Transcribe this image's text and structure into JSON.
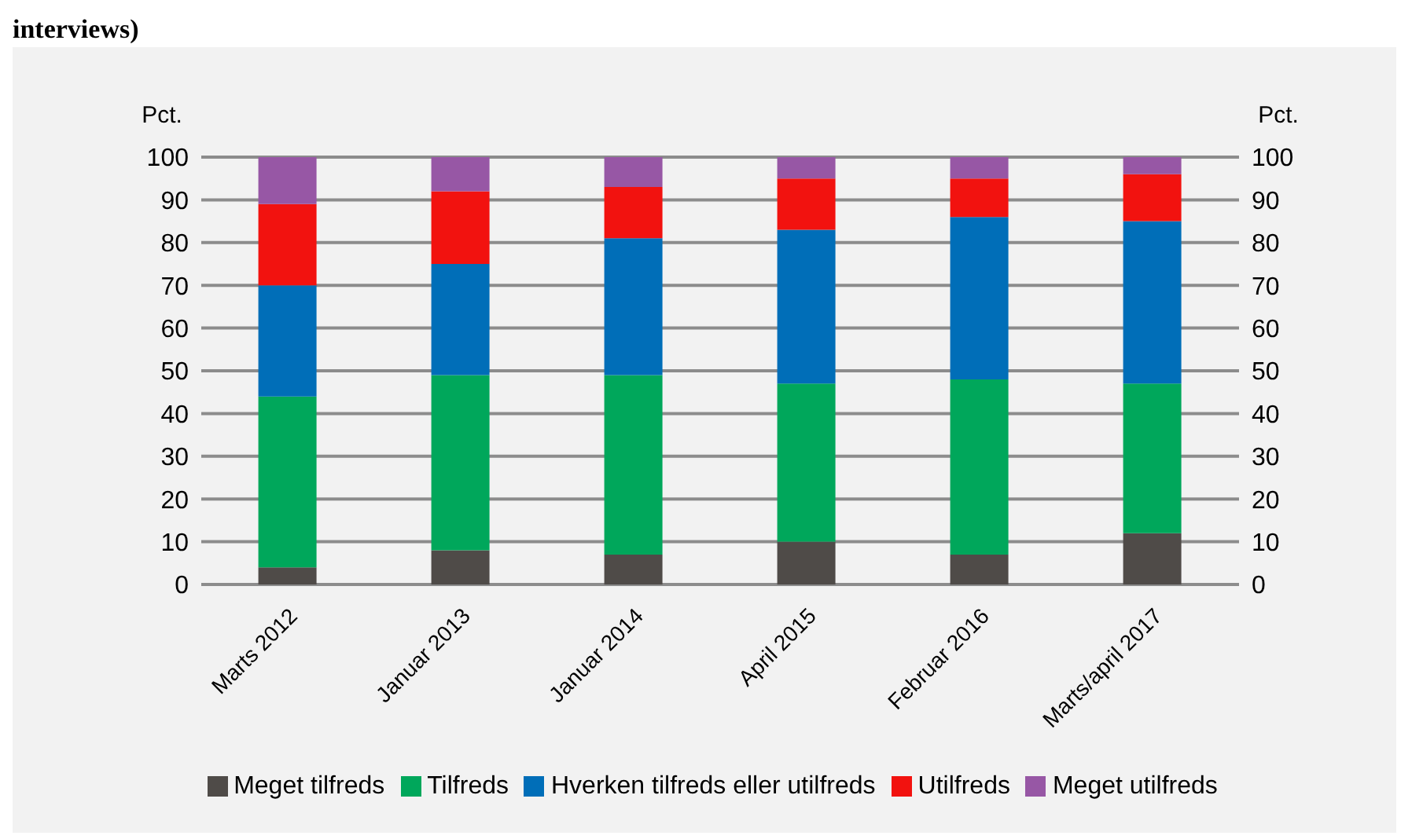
{
  "chart_data": {
    "type": "bar",
    "title": "interviews)",
    "ylabel": "Pct.",
    "y2label": "Pct.",
    "categories": [
      "Marts 2012",
      "Januar 2013",
      "Januar 2014",
      "April 2015",
      "Februar 2016",
      "Marts/april 2017"
    ],
    "series": [
      {
        "name": "Meget tilfreds",
        "color": "#4f4b48",
        "values": [
          4,
          8,
          7,
          10,
          7,
          12
        ]
      },
      {
        "name": "Tilfreds",
        "color": "#00a75b",
        "values": [
          40,
          41,
          42,
          37,
          41,
          35
        ]
      },
      {
        "name": "Hverken tilfreds eller utilfreds",
        "color": "#006eb8",
        "values": [
          26,
          26,
          32,
          36,
          38,
          38
        ]
      },
      {
        "name": "Utilfreds",
        "color": "#f2120f",
        "values": [
          19,
          17,
          12,
          12,
          9,
          11
        ]
      },
      {
        "name": "Meget utilfreds",
        "color": "#9757a5",
        "values": [
          11,
          8,
          7,
          5,
          5,
          4
        ]
      }
    ],
    "stacked": true,
    "ylim": [
      0,
      100
    ],
    "yticks": [
      0,
      10,
      20,
      30,
      40,
      50,
      60,
      70,
      80,
      90,
      100
    ],
    "y2lim": [
      0,
      100
    ],
    "y2ticks": [
      0,
      10,
      20,
      30,
      40,
      50,
      60,
      70,
      80,
      90,
      100
    ],
    "grid": "y",
    "legend": "bottom"
  }
}
